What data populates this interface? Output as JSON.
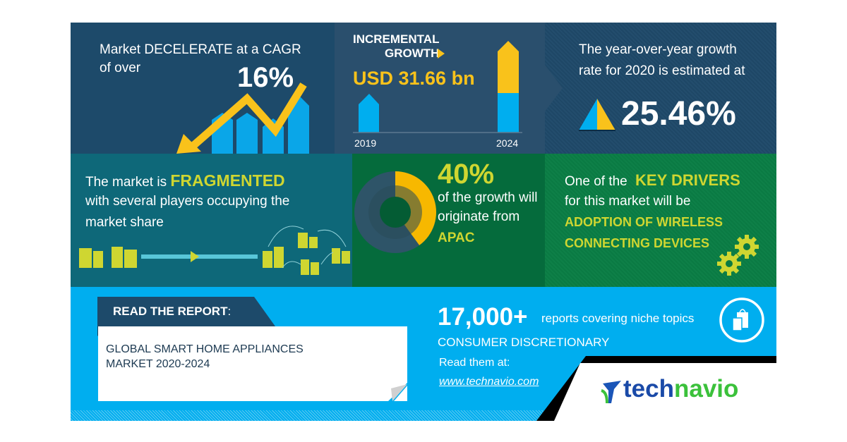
{
  "cagr": {
    "line1": "Market DECELERATE at a CAGR",
    "line2": "of over",
    "value": "16%"
  },
  "incremental": {
    "line1": "INCREMENTAL",
    "line2": "GROWTH",
    "value": "USD 31.66 bn",
    "year_start": "2019",
    "year_end": "2024"
  },
  "yoy": {
    "line1": "The year-over-year growth",
    "line2": "rate for 2020 is estimated at",
    "value": "25.46%"
  },
  "fragmented": {
    "prefix": "The market is",
    "highlight": "FRAGMENTED",
    "line2": "with several players occupying the",
    "line3": "market share"
  },
  "region": {
    "value": "40%",
    "share_percent": 40,
    "line1": "of the growth will",
    "line2": "originate from",
    "region": "APAC"
  },
  "drivers": {
    "prefix": "One of the",
    "highlight": "KEY DRIVERS",
    "line2": "for this market will be",
    "driver1": "ADOPTION OF WIRELESS",
    "driver2": "CONNECTING DEVICES"
  },
  "report": {
    "label": "READ THE REPORT",
    "colon": ":",
    "title1": "GLOBAL SMART HOME APPLIANCES",
    "title2": "MARKET 2020-2024"
  },
  "promo": {
    "count": "17,000+",
    "count_text": "reports covering niche topics",
    "category": "CONSUMER DISCRETIONARY",
    "read_at": "Read them at:",
    "url": "www.technavio.com"
  },
  "logo": {
    "text_a": "tech",
    "text_b": "navio"
  },
  "colors": {
    "yellow": "#f9c21b",
    "blue": "#00aeef",
    "lime": "#cfd631",
    "navy": "#1d4a6a",
    "green": "#0a7a43"
  }
}
